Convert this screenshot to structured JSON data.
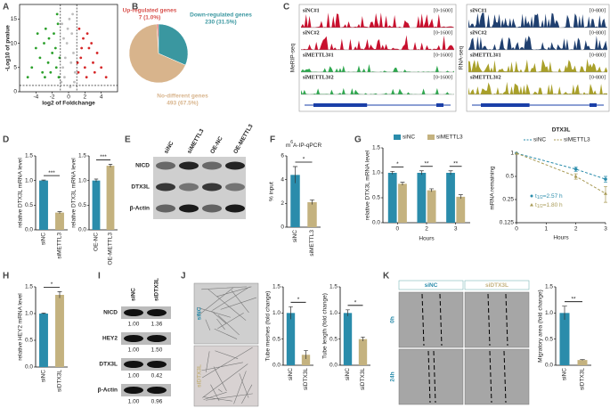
{
  "panels": [
    "A",
    "B",
    "C",
    "D",
    "E",
    "F",
    "G",
    "H",
    "I",
    "J",
    "K"
  ],
  "chart_data": [
    {
      "type": "scatter",
      "xlabel": "log2 of Foldchange",
      "ylabel": "-Log10 of pvalue",
      "xlim": [
        -6,
        6
      ],
      "xticks": [
        -4,
        -2,
        0,
        2,
        4
      ],
      "ylim": [
        0,
        18
      ],
      "yticks": [
        0,
        5,
        10,
        15
      ],
      "thresholds": {
        "x": [
          -1,
          1
        ],
        "y": 1.3
      },
      "series": [
        {
          "color": "#bdbdbd",
          "x": [
            -0.5,
            0.3,
            -0.2,
            0.6,
            -0.8,
            0.1,
            0.4,
            -0.4,
            0.8,
            -0.9,
            0.2,
            -0.6,
            0.5,
            -0.1,
            0.7,
            -0.7
          ],
          "values": [
            3,
            6,
            10,
            8,
            14,
            15,
            12,
            7,
            4,
            2,
            1,
            11,
            16,
            13,
            2,
            5
          ]
        },
        {
          "color": "#2ca02c",
          "x": [
            -1.2,
            -1.5,
            -2,
            -2.5,
            -3,
            -1.8,
            -2.2,
            -3.5,
            -4,
            -1.3,
            -2.8,
            -1.6,
            -3.2,
            -4.5,
            -2.4,
            -1.1,
            -3.8,
            -2.9,
            -5,
            -1.4
          ],
          "values": [
            3,
            5,
            8,
            6,
            10,
            12,
            4,
            7,
            9,
            14,
            13,
            9,
            4,
            5,
            11,
            7,
            12,
            3,
            3,
            16
          ]
        },
        {
          "color": "#d62728",
          "x": [
            1.2,
            1.5,
            2,
            2.5,
            3,
            1.8,
            2.2,
            3.5,
            4,
            1.3,
            2.8,
            1.6,
            3.2,
            4.6,
            2.3,
            1.1
          ],
          "values": [
            4,
            7,
            5,
            9,
            6,
            11,
            3,
            8,
            5,
            13,
            10,
            9,
            4,
            3,
            12,
            6
          ]
        }
      ]
    },
    {
      "type": "pie",
      "categories": [
        "Up-regulated genes",
        "Down-regulated genes",
        "No-different genes"
      ],
      "values": [
        7,
        230,
        493
      ],
      "value_labels": [
        "7 (1.0%)",
        "230 (31.5%)",
        "493 (67.5%)"
      ],
      "colors": [
        "#d9534f",
        "#3a97a0",
        "#d8b48c"
      ]
    },
    {
      "type": "bar",
      "ylabel": "relative DTX3L mRNA level",
      "categories": [
        "siNC",
        "siMETTL3"
      ],
      "values": [
        1.0,
        0.35
      ],
      "errors": [
        0.01,
        0.02
      ],
      "colors": [
        "#2a8cab",
        "#c4b27f"
      ],
      "ylim": [
        0,
        1.5
      ],
      "yticks": [
        {
          "value": 0,
          "label": "0.0"
        },
        {
          "value": 0.5,
          "label": "0.5"
        },
        {
          "value": 1,
          "label": "1.0"
        },
        {
          "value": 1.5,
          "label": "1.5"
        }
      ],
      "significance": "***"
    },
    {
      "type": "bar",
      "ylabel": "relative DTX3L mRNA level",
      "categories": [
        "OE-NC",
        "OE-METTL3"
      ],
      "values": [
        1.0,
        1.3
      ],
      "errors": [
        0.03,
        0.03
      ],
      "colors": [
        "#2a8cab",
        "#c4b27f"
      ],
      "ylim": [
        0,
        1.5
      ],
      "yticks": [
        {
          "value": 0,
          "label": "0.0"
        },
        {
          "value": 0.5,
          "label": "0.5"
        },
        {
          "value": 1,
          "label": "1.0"
        },
        {
          "value": 1.5,
          "label": "1.5"
        }
      ],
      "significance": "***"
    },
    {
      "type": "bar",
      "title": [
        "m",
        "6",
        "A-IP-qPCR"
      ],
      "ylabel": "% input",
      "categories": [
        "siNC",
        "siMETTL3"
      ],
      "values": [
        4.4,
        2.1
      ],
      "errors": [
        0.7,
        0.2
      ],
      "colors": [
        "#2a8cab",
        "#c4b27f"
      ],
      "ylim": [
        0,
        6
      ],
      "yticks": [
        0,
        2,
        4,
        6
      ],
      "significance": "*"
    },
    {
      "type": "grouped_bar",
      "ylabel": "relative DTX3L mRNA level",
      "xlabel": "Hours",
      "categories": [
        "0",
        "2",
        "3"
      ],
      "series": [
        {
          "name": "siNC",
          "color": "#2a8cab",
          "values": [
            1.0,
            1.0,
            1.0
          ],
          "errors": [
            0.03,
            0.04,
            0.04
          ]
        },
        {
          "name": "siMETTL3",
          "color": "#c4b27f",
          "values": [
            0.78,
            0.65,
            0.52
          ],
          "errors": [
            0.03,
            0.03,
            0.04
          ]
        }
      ],
      "significance": [
        "*",
        "**",
        "**"
      ],
      "ylim": [
        0,
        1.5
      ],
      "yticks": [
        {
          "value": 0,
          "label": "0.0"
        },
        {
          "value": 0.5,
          "label": "0.5"
        },
        {
          "value": 1,
          "label": "1.0"
        },
        {
          "value": 1.5,
          "label": "1.5"
        }
      ]
    },
    {
      "type": "line",
      "title": "DTX3L",
      "ylabel": "mRNA remaining",
      "xlabel": "Hours",
      "log_y": true,
      "x": [
        0,
        2,
        3
      ],
      "xlim": [
        0,
        3
      ],
      "xticks": [
        0,
        1,
        2,
        3
      ],
      "ylim": [
        0.125,
        1
      ],
      "yticks": [
        0.125,
        0.25,
        0.5,
        1
      ],
      "series": [
        {
          "name": "siNC",
          "color": "#2a8cab",
          "values": [
            1,
            0.62,
            0.46
          ],
          "errors": [
            0,
            0.04,
            0.04
          ]
        },
        {
          "name": "siMETTL3",
          "color": "#a89a55",
          "values": [
            1,
            0.5,
            0.3
          ],
          "errors": [
            0,
            0.04,
            0.07
          ]
        }
      ],
      "annotations": [
        [
          "t",
          "1/2",
          "=2.57 h"
        ],
        [
          "t",
          "1/2",
          "=1.80 h"
        ]
      ]
    },
    {
      "type": "bar",
      "ylabel": "relative HEY2 mRNA level",
      "categories": [
        "siNC",
        "siDTX3L"
      ],
      "values": [
        1.0,
        1.35
      ],
      "errors": [
        0.01,
        0.06
      ],
      "colors": [
        "#2a8cab",
        "#c4b27f"
      ],
      "ylim": [
        0,
        1.5
      ],
      "yticks": [
        {
          "value": 0,
          "label": "0.0"
        },
        {
          "value": 0.5,
          "label": "0.5"
        },
        {
          "value": 1,
          "label": "1.0"
        },
        {
          "value": 1.5,
          "label": "1.5"
        }
      ],
      "significance": "*"
    },
    {
      "type": "bar",
      "ylabel": "Tube meshes (fold change)",
      "categories": [
        "siNC",
        "siDTX3L"
      ],
      "values": [
        1.0,
        0.2
      ],
      "errors": [
        0.12,
        0.08
      ],
      "colors": [
        "#2a8cab",
        "#c4b27f"
      ],
      "ylim": [
        0,
        1.5
      ],
      "yticks": [
        {
          "value": 0,
          "label": "0.0"
        },
        {
          "value": 0.5,
          "label": "0.5"
        },
        {
          "value": 1,
          "label": "1.0"
        },
        {
          "value": 1.5,
          "label": "1.5"
        }
      ],
      "significance": "*"
    },
    {
      "type": "bar",
      "ylabel": "Tube length (fold change)",
      "categories": [
        "siNC",
        "siDTX3L"
      ],
      "values": [
        1.0,
        0.5
      ],
      "errors": [
        0.06,
        0.04
      ],
      "colors": [
        "#2a8cab",
        "#c4b27f"
      ],
      "ylim": [
        0,
        1.5
      ],
      "yticks": [
        {
          "value": 0,
          "label": "0.0"
        },
        {
          "value": 0.5,
          "label": "0.5"
        },
        {
          "value": 1,
          "label": "1.0"
        },
        {
          "value": 1.5,
          "label": "1.5"
        }
      ],
      "significance": "*"
    },
    {
      "type": "bar",
      "ylabel": "Migratory area (fold change)",
      "categories": [
        "siNC",
        "siDTX3L"
      ],
      "values": [
        1.0,
        0.1
      ],
      "errors": [
        0.13,
        0.01
      ],
      "colors": [
        "#2a8cab",
        "#c4b27f"
      ],
      "ylim": [
        0,
        1.5
      ],
      "yticks": [
        {
          "value": 0,
          "label": "0.0"
        },
        {
          "value": 0.5,
          "label": "0.5"
        },
        {
          "value": 1,
          "label": "1.0"
        },
        {
          "value": 1.5,
          "label": "1.5"
        }
      ],
      "significance": "**"
    }
  ],
  "tracks": {
    "left_label": "MeRIP-seq",
    "right_label": "RNA-seq",
    "left": [
      {
        "name": "siNC#1",
        "range": "[0-1600]"
      },
      {
        "name": "siNC#2",
        "range": "[0-1600]"
      },
      {
        "name": "siMETTL3#1",
        "range": "[0-1600]"
      },
      {
        "name": "siMETTL3#2",
        "range": "[0-1600]"
      }
    ],
    "right": [
      {
        "name": "siNC#1",
        "range": "[0-800]"
      },
      {
        "name": "siNC#2",
        "range": "[0-800]"
      },
      {
        "name": "siMETTL3#1",
        "range": "[0-800]"
      },
      {
        "name": "siMETTL3#2",
        "range": "[0-800]"
      }
    ]
  },
  "blot_e": {
    "lanes": [
      "siNC",
      "siMETTL3",
      "OE-NC",
      "OE-METTL3"
    ],
    "rows": [
      "NICD",
      "DTX3L",
      "β-Actin"
    ]
  },
  "blot_i": {
    "lanes": [
      "siNC",
      "siDTX3L"
    ],
    "rows": [
      {
        "name": "NICD",
        "values": [
          "1.00",
          "1.36"
        ]
      },
      {
        "name": "HEY2",
        "values": [
          "1.00",
          "1.50"
        ]
      },
      {
        "name": "DTX3L",
        "values": [
          "1.00",
          "0.42"
        ]
      },
      {
        "name": "β-Actin",
        "values": [
          "1.00",
          "0.96"
        ]
      }
    ]
  },
  "images_j": {
    "rows": [
      "siNC",
      "siDTX3L"
    ]
  },
  "images_k": {
    "columns": [
      "siNC",
      "siDTX3L"
    ],
    "rows": [
      "0h",
      "24h"
    ]
  }
}
